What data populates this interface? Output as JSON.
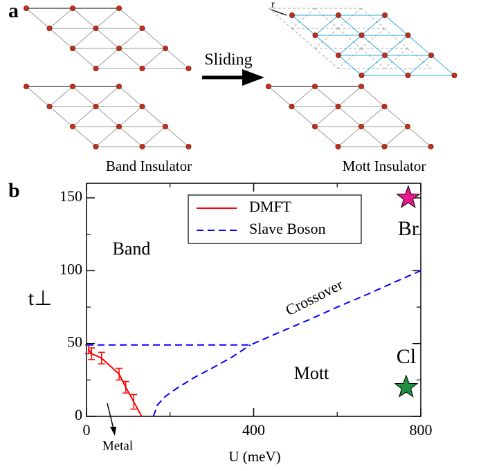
{
  "panel_a": {
    "label": "a",
    "arrow_label": "Sliding",
    "shift_label": "r",
    "left_caption": "Band Insulator",
    "right_caption": "Mott Insulator"
  },
  "chart_data": {
    "type": "line",
    "label": "b",
    "xlabel": "U (meV)",
    "ylabel": "t⊥",
    "xlim": [
      0,
      800
    ],
    "ylim": [
      0,
      160
    ],
    "xticks": [
      0,
      400,
      800
    ],
    "yticks": [
      0,
      50,
      100,
      150
    ],
    "xminorticks": [
      200,
      600
    ],
    "yminorticks": [
      25,
      75,
      125
    ],
    "legend": "upper right",
    "series": [
      {
        "name": "DMFT",
        "color": "#ff0000",
        "dash": false,
        "x": [
          5,
          12,
          36,
          78,
          94,
          113,
          132
        ],
        "values": [
          46,
          43,
          40,
          29,
          20,
          10,
          0
        ],
        "errors": [
          3,
          4,
          4,
          4,
          4,
          5,
          null
        ]
      },
      {
        "name": "Slave Boson",
        "color": "#0000ff",
        "dash": true,
        "x": [
          0,
          392,
          460,
          530,
          600,
          670,
          740,
          800,
          null,
          160,
          170,
          190,
          220,
          260,
          300,
          350,
          392
        ],
        "values": [
          49,
          49,
          57.5,
          66,
          75,
          83.5,
          92.5,
          100,
          null,
          0,
          8,
          14,
          20,
          27,
          33,
          41,
          49
        ]
      }
    ],
    "points": [
      {
        "name": "Br",
        "x": 770,
        "y": 150,
        "color": "#e6198c"
      },
      {
        "name": "Cl",
        "x": 765,
        "y": 20,
        "color": "#1e9040"
      }
    ],
    "annotations": [
      "Band",
      "Mott",
      "Crossover",
      "Metal"
    ]
  }
}
